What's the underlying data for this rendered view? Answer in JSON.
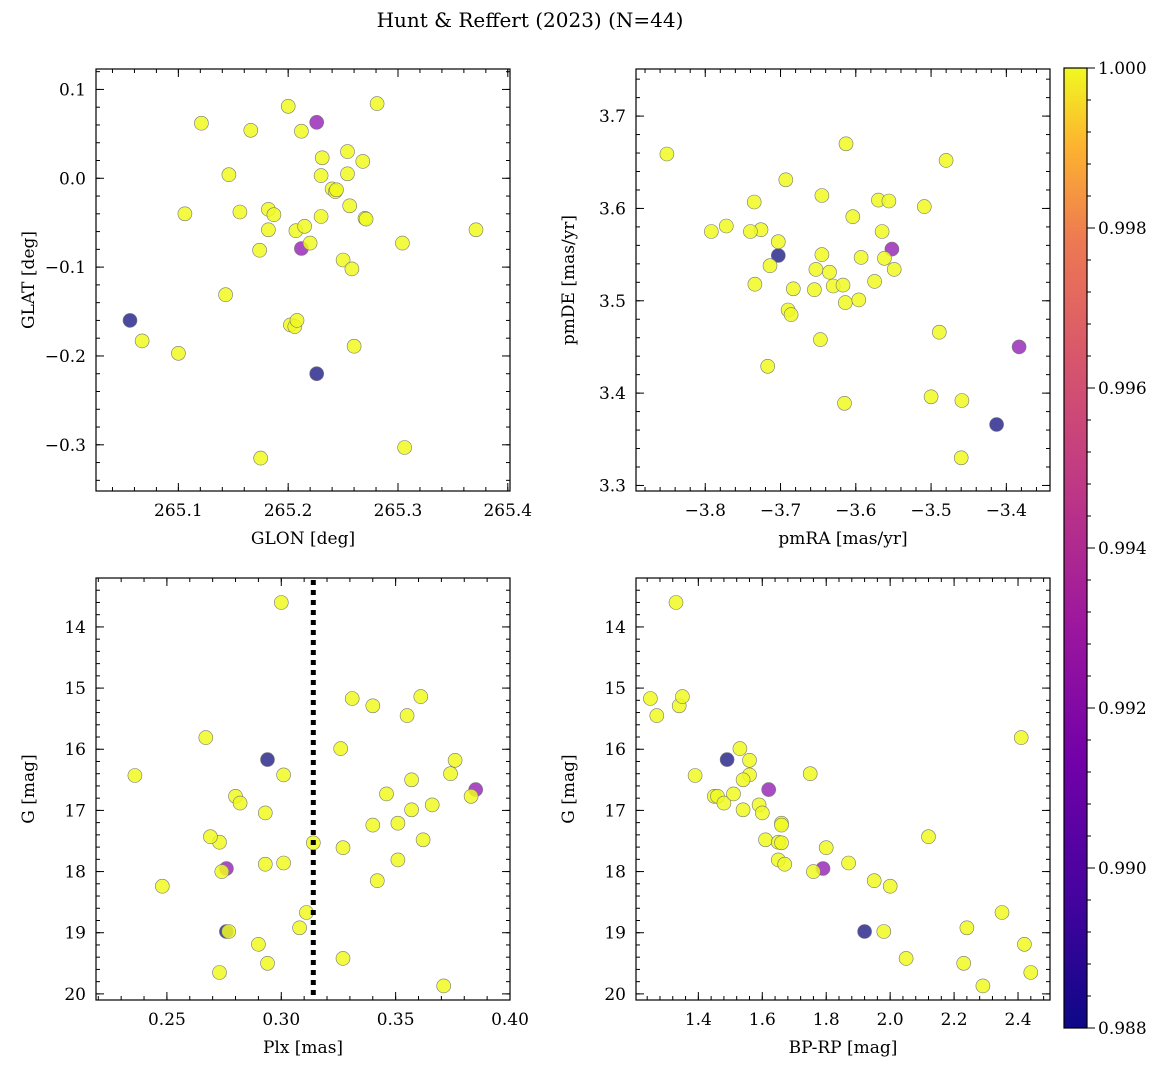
{
  "colors": {
    "low": "#2d2a8e",
    "mid": "#9a2bb8",
    "high": "#f0f921"
  },
  "chart_data": {
    "type": "scatter",
    "title": "Hunt & Reffert (2023) (N=44)",
    "colorbar": {
      "range": [
        0.988,
        1.0
      ],
      "ticks": [
        0.988,
        0.99,
        0.992,
        0.994,
        0.996,
        0.998,
        1.0
      ],
      "tick_labels": [
        "0.988",
        "0.990",
        "0.992",
        "0.994",
        "0.996",
        "0.998",
        "1.000"
      ],
      "colormap": "plasma"
    },
    "stars": [
      {
        "glon": 265.056,
        "glat": -0.16,
        "pmra": -3.703,
        "pmde": 3.549,
        "plx": 0.276,
        "g": 18.98,
        "bprp": 1.92,
        "p": 0.988
      },
      {
        "glon": 265.226,
        "glat": -0.22,
        "pmra": -3.413,
        "pmde": 3.366,
        "plx": 0.294,
        "g": 16.17,
        "bprp": 1.49,
        "p": 0.988
      },
      {
        "glon": 265.226,
        "glat": 0.063,
        "pmra": -3.552,
        "pmde": 3.556,
        "plx": 0.385,
        "g": 16.66,
        "bprp": 1.62,
        "p": 0.991
      },
      {
        "glon": 265.212,
        "glat": -0.079,
        "pmra": -3.383,
        "pmde": 3.45,
        "plx": 0.276,
        "g": 17.95,
        "bprp": 1.79,
        "p": 0.991
      },
      {
        "glon": 265.121,
        "glat": 0.062,
        "pmra": -3.851,
        "pmde": 3.659,
        "plx": 0.3,
        "g": 13.6,
        "bprp": 1.33,
        "p": 1.0
      },
      {
        "glon": 265.166,
        "glat": 0.054,
        "pmra": -3.792,
        "pmde": 3.575,
        "plx": 0.331,
        "g": 15.17,
        "bprp": 1.25,
        "p": 1.0
      },
      {
        "glon": 265.2,
        "glat": 0.081,
        "pmra": -3.772,
        "pmde": 3.581,
        "plx": 0.34,
        "g": 15.29,
        "bprp": 1.34,
        "p": 1.0
      },
      {
        "glon": 265.212,
        "glat": 0.053,
        "pmra": -3.735,
        "pmde": 3.607,
        "plx": 0.361,
        "g": 15.14,
        "bprp": 1.35,
        "p": 1.0
      },
      {
        "glon": 265.281,
        "glat": 0.084,
        "pmra": -3.726,
        "pmde": 3.577,
        "plx": 0.355,
        "g": 15.45,
        "bprp": 1.27,
        "p": 1.0
      },
      {
        "glon": 265.146,
        "glat": 0.004,
        "pmra": -3.717,
        "pmde": 3.429,
        "plx": 0.326,
        "g": 15.99,
        "bprp": 1.53,
        "p": 1.0
      },
      {
        "glon": 265.231,
        "glat": 0.023,
        "pmra": -3.734,
        "pmde": 3.518,
        "plx": 0.267,
        "g": 15.81,
        "bprp": 2.41,
        "p": 1.0
      },
      {
        "glon": 265.254,
        "glat": 0.03,
        "pmra": -3.714,
        "pmde": 3.538,
        "plx": 0.236,
        "g": 16.43,
        "bprp": 1.39,
        "p": 1.0
      },
      {
        "glon": 265.268,
        "glat": 0.019,
        "pmra": -3.703,
        "pmde": 3.564,
        "plx": 0.301,
        "g": 16.42,
        "bprp": 1.56,
        "p": 1.0
      },
      {
        "glon": 265.23,
        "glat": 0.003,
        "pmra": -3.693,
        "pmde": 3.631,
        "plx": 0.357,
        "g": 16.5,
        "bprp": 1.54,
        "p": 1.0
      },
      {
        "glon": 265.254,
        "glat": 0.005,
        "pmra": -3.683,
        "pmde": 3.513,
        "plx": 0.376,
        "g": 16.18,
        "bprp": 1.56,
        "p": 1.0
      },
      {
        "glon": 265.24,
        "glat": -0.012,
        "pmra": -3.69,
        "pmde": 3.49,
        "plx": 0.374,
        "g": 16.4,
        "bprp": 1.75,
        "p": 1.0
      },
      {
        "glon": 265.243,
        "glat": -0.015,
        "pmra": -3.686,
        "pmde": 3.485,
        "plx": 0.383,
        "g": 16.77,
        "bprp": 1.45,
        "p": 1.0
      },
      {
        "glon": 265.106,
        "glat": -0.04,
        "pmra": -3.655,
        "pmde": 3.512,
        "plx": 0.28,
        "g": 16.77,
        "bprp": 1.46,
        "p": 1.0
      },
      {
        "glon": 265.156,
        "glat": -0.038,
        "pmra": -3.647,
        "pmde": 3.458,
        "plx": 0.282,
        "g": 16.88,
        "bprp": 1.48,
        "p": 1.0
      },
      {
        "glon": 265.182,
        "glat": -0.035,
        "pmra": -3.653,
        "pmde": 3.534,
        "plx": 0.346,
        "g": 16.73,
        "bprp": 1.51,
        "p": 1.0
      },
      {
        "glon": 265.187,
        "glat": -0.041,
        "pmra": -3.645,
        "pmde": 3.55,
        "plx": 0.357,
        "g": 16.99,
        "bprp": 1.54,
        "p": 1.0
      },
      {
        "glon": 265.23,
        "glat": -0.043,
        "pmra": -3.645,
        "pmde": 3.614,
        "plx": 0.366,
        "g": 16.91,
        "bprp": 1.59,
        "p": 1.0
      },
      {
        "glon": 265.256,
        "glat": -0.031,
        "pmra": -3.635,
        "pmde": 3.531,
        "plx": 0.293,
        "g": 17.04,
        "bprp": 1.6,
        "p": 1.0
      },
      {
        "glon": 265.27,
        "glat": -0.045,
        "pmra": -3.63,
        "pmde": 3.516,
        "plx": 0.362,
        "g": 17.48,
        "bprp": 1.61,
        "p": 1.0
      },
      {
        "glon": 265.271,
        "glat": -0.046,
        "pmra": -3.615,
        "pmde": 3.389,
        "plx": 0.351,
        "g": 17.21,
        "bprp": 1.66,
        "p": 1.0
      },
      {
        "glon": 265.182,
        "glat": -0.058,
        "pmra": -3.617,
        "pmde": 3.517,
        "plx": 0.34,
        "g": 17.24,
        "bprp": 1.66,
        "p": 1.0
      },
      {
        "glon": 265.207,
        "glat": -0.059,
        "pmra": -3.614,
        "pmde": 3.498,
        "plx": 0.273,
        "g": 17.52,
        "bprp": 1.65,
        "p": 1.0
      },
      {
        "glon": 265.215,
        "glat": -0.054,
        "pmra": -3.613,
        "pmde": 3.67,
        "plx": 0.269,
        "g": 17.43,
        "bprp": 2.12,
        "p": 1.0
      },
      {
        "glon": 265.22,
        "glat": -0.073,
        "pmra": -3.604,
        "pmde": 3.591,
        "plx": 0.327,
        "g": 17.61,
        "bprp": 1.8,
        "p": 1.0
      },
      {
        "glon": 265.304,
        "glat": -0.073,
        "pmra": -3.596,
        "pmde": 3.501,
        "plx": 0.314,
        "g": 17.53,
        "bprp": 1.66,
        "p": 1.0
      },
      {
        "glon": 265.174,
        "glat": -0.081,
        "pmra": -3.593,
        "pmde": 3.547,
        "plx": 0.351,
        "g": 17.81,
        "bprp": 1.65,
        "p": 1.0
      },
      {
        "glon": 265.371,
        "glat": -0.058,
        "pmra": -3.575,
        "pmde": 3.521,
        "plx": 0.293,
        "g": 17.88,
        "bprp": 1.67,
        "p": 1.0
      },
      {
        "glon": 265.25,
        "glat": -0.092,
        "pmra": -3.57,
        "pmde": 3.609,
        "plx": 0.301,
        "g": 17.86,
        "bprp": 1.87,
        "p": 1.0
      },
      {
        "glon": 265.258,
        "glat": -0.102,
        "pmra": -3.565,
        "pmde": 3.575,
        "plx": 0.274,
        "g": 18.0,
        "bprp": 1.76,
        "p": 1.0
      },
      {
        "glon": 265.143,
        "glat": -0.131,
        "pmra": -3.562,
        "pmde": 3.546,
        "plx": 0.342,
        "g": 18.15,
        "bprp": 1.95,
        "p": 1.0
      },
      {
        "glon": 265.202,
        "glat": -0.165,
        "pmra": -3.556,
        "pmde": 3.608,
        "plx": 0.248,
        "g": 18.24,
        "bprp": 2.0,
        "p": 1.0
      },
      {
        "glon": 265.206,
        "glat": -0.167,
        "pmra": -3.549,
        "pmde": 3.534,
        "plx": 0.311,
        "g": 18.67,
        "bprp": 2.35,
        "p": 1.0
      },
      {
        "glon": 265.067,
        "glat": -0.183,
        "pmra": -3.509,
        "pmde": 3.602,
        "plx": 0.308,
        "g": 18.92,
        "bprp": 2.24,
        "p": 1.0
      },
      {
        "glon": 265.26,
        "glat": -0.189,
        "pmra": -3.5,
        "pmde": 3.396,
        "plx": 0.277,
        "g": 18.98,
        "bprp": 1.98,
        "p": 1.0
      },
      {
        "glon": 265.1,
        "glat": -0.197,
        "pmra": -3.489,
        "pmde": 3.466,
        "plx": 0.29,
        "g": 19.19,
        "bprp": 2.42,
        "p": 1.0
      },
      {
        "glon": 265.175,
        "glat": -0.315,
        "pmra": -3.48,
        "pmde": 3.652,
        "plx": 0.327,
        "g": 19.42,
        "bprp": 2.05,
        "p": 1.0
      },
      {
        "glon": 265.306,
        "glat": -0.303,
        "pmra": -3.459,
        "pmde": 3.392,
        "plx": 0.294,
        "g": 19.5,
        "bprp": 2.23,
        "p": 1.0
      },
      {
        "glon": 265.208,
        "glat": -0.16,
        "pmra": -3.46,
        "pmde": 3.33,
        "plx": 0.273,
        "g": 19.65,
        "bprp": 2.44,
        "p": 1.0
      },
      {
        "glon": 265.244,
        "glat": -0.013,
        "pmra": -3.74,
        "pmde": 3.575,
        "plx": 0.371,
        "g": 19.87,
        "bprp": 2.29,
        "p": 1.0
      }
    ],
    "panels": [
      {
        "id": "glon-glat",
        "x": "glon",
        "y": "glat",
        "xlabel": "GLON [deg]",
        "ylabel": "GLAT [deg]",
        "xlim": [
          265.025,
          265.402
        ],
        "ylim": [
          -0.352,
          0.123
        ],
        "y_inverted": false,
        "xticks": [
          265.1,
          265.2,
          265.3,
          265.4
        ],
        "xtick_labels": [
          "265.1",
          "265.2",
          "265.3",
          "265.4"
        ],
        "yticks": [
          0.1,
          0.0,
          -0.1,
          -0.2,
          -0.3
        ],
        "ytick_labels": [
          "0.1",
          "0.0",
          "−0.1",
          "−0.2",
          "−0.3"
        ]
      },
      {
        "id": "pm",
        "x": "pmra",
        "y": "pmde",
        "xlabel": "pmRA [mas/yr]",
        "ylabel": "pmDE [mas/yr]",
        "xlim": [
          -3.892,
          -3.342
        ],
        "ylim": [
          3.294,
          3.751
        ],
        "y_inverted": false,
        "xticks": [
          -3.8,
          -3.7,
          -3.6,
          -3.5,
          -3.4
        ],
        "xtick_labels": [
          "−3.8",
          "−3.7",
          "−3.6",
          "−3.5",
          "−3.4"
        ],
        "yticks": [
          3.3,
          3.4,
          3.5,
          3.6,
          3.7
        ],
        "ytick_labels": [
          "3.3",
          "3.4",
          "3.5",
          "3.6",
          "3.7"
        ]
      },
      {
        "id": "plx-g",
        "x": "plx",
        "y": "g",
        "xlabel": "Plx [mas]",
        "ylabel": "G [mag]",
        "xlim": [
          0.219,
          0.4
        ],
        "ylim": [
          13.2,
          20.1
        ],
        "y_inverted": true,
        "xticks": [
          0.25,
          0.3,
          0.35,
          0.4
        ],
        "xtick_labels": [
          "0.25",
          "0.30",
          "0.35",
          "0.40"
        ],
        "yticks": [
          14,
          15,
          16,
          17,
          18,
          19,
          20
        ],
        "ytick_labels": [
          "14",
          "15",
          "16",
          "17",
          "18",
          "19",
          "20"
        ],
        "vline": 0.314
      },
      {
        "id": "cmd",
        "x": "bprp",
        "y": "g",
        "xlabel": "BP-RP [mag]",
        "ylabel": "G [mag]",
        "xlim": [
          1.205,
          2.5
        ],
        "ylim": [
          13.2,
          20.1
        ],
        "y_inverted": true,
        "xticks": [
          1.4,
          1.6,
          1.8,
          2.0,
          2.2,
          2.4
        ],
        "xtick_labels": [
          "1.4",
          "1.6",
          "1.8",
          "2.0",
          "2.2",
          "2.4"
        ],
        "yticks": [
          14,
          15,
          16,
          17,
          18,
          19,
          20
        ],
        "ytick_labels": [
          "14",
          "15",
          "16",
          "17",
          "18",
          "19",
          "20"
        ]
      }
    ]
  }
}
